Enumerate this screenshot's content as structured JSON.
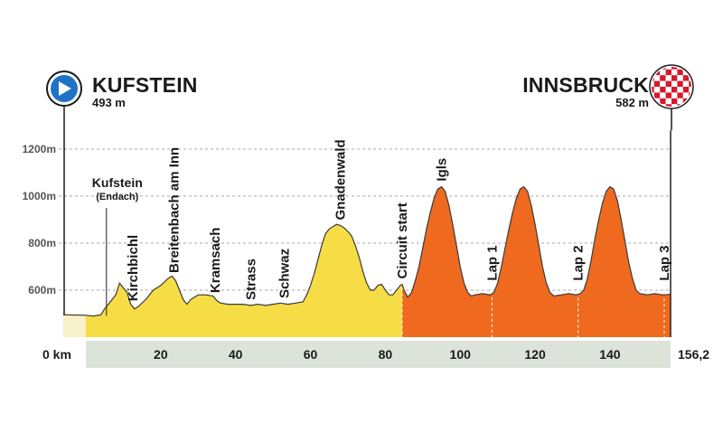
{
  "start": {
    "name": "KUFSTEIN",
    "altitude": "493 m",
    "icon": "play-icon"
  },
  "finish": {
    "name": "INNSBRUCK",
    "altitude": "582 m",
    "icon": "checkered-flag-icon"
  },
  "colors": {
    "line_section": "#f6dd45",
    "circuit_section": "#ef6a1f",
    "axis_band": "#dce3d9",
    "start_marker": "#1e73c6",
    "grid": "#8a8a8a",
    "text": "#1a1a1a"
  },
  "chart_data": {
    "type": "area",
    "xlabel": "",
    "ylabel": "",
    "xlim": [
      0,
      156.2
    ],
    "ylim": [
      400,
      1300
    ],
    "x_ticks": [
      0,
      20,
      40,
      60,
      80,
      100,
      120,
      140,
      156.2
    ],
    "x_tick_labels": [
      "0 km",
      "20",
      "40",
      "60",
      "80",
      "100",
      "120",
      "140",
      "156,2"
    ],
    "y_ticks": [
      600,
      800,
      1000,
      1200
    ],
    "y_tick_labels": [
      "600m",
      "800m",
      "1000m",
      "1200m"
    ],
    "circuit_start_km": 84.5,
    "profile": [
      [
        0,
        493
      ],
      [
        2,
        490
      ],
      [
        4,
        495
      ],
      [
        5,
        520
      ],
      [
        6,
        540
      ],
      [
        7,
        560
      ],
      [
        8,
        580
      ],
      [
        9,
        630
      ],
      [
        10,
        610
      ],
      [
        11,
        590
      ],
      [
        12,
        540
      ],
      [
        13,
        520
      ],
      [
        14,
        530
      ],
      [
        16,
        560
      ],
      [
        18,
        600
      ],
      [
        20,
        620
      ],
      [
        22,
        650
      ],
      [
        23,
        660
      ],
      [
        24,
        640
      ],
      [
        25,
        600
      ],
      [
        26,
        560
      ],
      [
        27,
        540
      ],
      [
        28,
        560
      ],
      [
        30,
        580
      ],
      [
        32,
        580
      ],
      [
        34,
        575
      ],
      [
        35,
        555
      ],
      [
        36,
        545
      ],
      [
        38,
        540
      ],
      [
        40,
        540
      ],
      [
        42,
        540
      ],
      [
        44,
        535
      ],
      [
        46,
        540
      ],
      [
        48,
        535
      ],
      [
        50,
        540
      ],
      [
        52,
        545
      ],
      [
        54,
        540
      ],
      [
        56,
        545
      ],
      [
        58,
        550
      ],
      [
        59,
        580
      ],
      [
        60,
        620
      ],
      [
        61,
        670
      ],
      [
        62,
        730
      ],
      [
        63,
        790
      ],
      [
        64,
        840
      ],
      [
        65,
        860
      ],
      [
        66,
        870
      ],
      [
        67,
        880
      ],
      [
        68,
        875
      ],
      [
        69,
        865
      ],
      [
        70,
        850
      ],
      [
        71,
        830
      ],
      [
        72,
        790
      ],
      [
        73,
        740
      ],
      [
        74,
        680
      ],
      [
        75,
        630
      ],
      [
        76,
        600
      ],
      [
        77,
        600
      ],
      [
        78,
        620
      ],
      [
        79,
        625
      ],
      [
        80,
        600
      ],
      [
        81,
        580
      ],
      [
        82,
        580
      ],
      [
        83,
        600
      ],
      [
        84,
        620
      ],
      [
        84.5,
        625
      ],
      [
        85,
        600
      ],
      [
        86,
        570
      ],
      [
        87,
        590
      ],
      [
        88,
        640
      ],
      [
        89,
        700
      ],
      [
        90,
        780
      ],
      [
        91,
        860
      ],
      [
        92,
        930
      ],
      [
        93,
        990
      ],
      [
        94,
        1030
      ],
      [
        95,
        1040
      ],
      [
        96,
        1020
      ],
      [
        97,
        960
      ],
      [
        98,
        880
      ],
      [
        99,
        790
      ],
      [
        100,
        700
      ],
      [
        101,
        630
      ],
      [
        102,
        590
      ],
      [
        103,
        575
      ],
      [
        104,
        580
      ],
      [
        106,
        585
      ],
      [
        108,
        580
      ],
      [
        109,
        590
      ],
      [
        110,
        630
      ],
      [
        111,
        700
      ],
      [
        112,
        780
      ],
      [
        113,
        860
      ],
      [
        114,
        930
      ],
      [
        115,
        990
      ],
      [
        116,
        1030
      ],
      [
        117,
        1040
      ],
      [
        118,
        1020
      ],
      [
        119,
        960
      ],
      [
        120,
        880
      ],
      [
        121,
        790
      ],
      [
        122,
        700
      ],
      [
        123,
        630
      ],
      [
        124,
        590
      ],
      [
        125,
        575
      ],
      [
        127,
        580
      ],
      [
        129,
        585
      ],
      [
        131,
        580
      ],
      [
        132,
        585
      ],
      [
        133,
        600
      ],
      [
        134,
        650
      ],
      [
        135,
        730
      ],
      [
        136,
        820
      ],
      [
        137,
        900
      ],
      [
        138,
        970
      ],
      [
        139,
        1020
      ],
      [
        140,
        1040
      ],
      [
        141,
        1030
      ],
      [
        142,
        980
      ],
      [
        143,
        900
      ],
      [
        144,
        810
      ],
      [
        145,
        720
      ],
      [
        146,
        650
      ],
      [
        147,
        600
      ],
      [
        148,
        585
      ],
      [
        150,
        580
      ],
      [
        152,
        585
      ],
      [
        154,
        580
      ],
      [
        156.2,
        582
      ]
    ],
    "annotations": [
      {
        "label": "Kufstein",
        "sublabel": "(Endach)",
        "km": 5.5
      },
      {
        "label": "Kirchbichl",
        "km": 12.5
      },
      {
        "label": "Breitenbach am Inn",
        "km": 23.5
      },
      {
        "label": "Kramsach",
        "km": 34.5
      },
      {
        "label": "Strass",
        "km": 44
      },
      {
        "label": "Schwaz",
        "km": 53
      },
      {
        "label": "Gnadenwald",
        "km": 68
      },
      {
        "label": "Circuit start",
        "km": 84.5
      },
      {
        "label": "Igls",
        "km": 95
      },
      {
        "label": "Lap 1",
        "km": 108.5
      },
      {
        "label": "Lap 2",
        "km": 131.5
      },
      {
        "label": "Lap 3",
        "km": 154.5
      }
    ]
  }
}
